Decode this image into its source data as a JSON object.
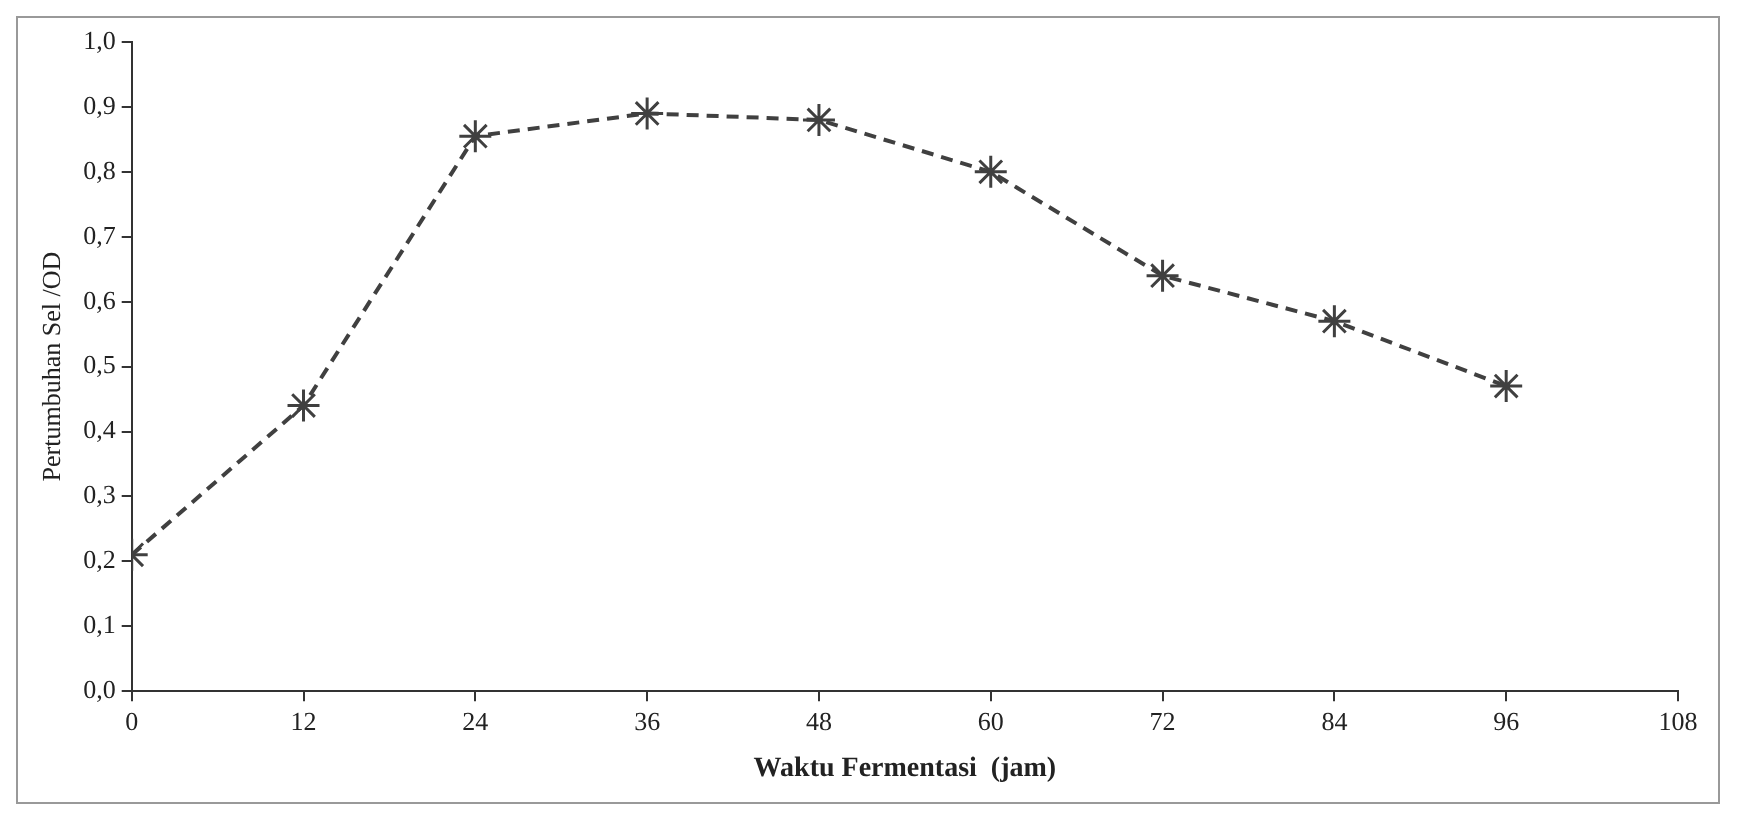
{
  "chart_data": {
    "type": "line",
    "xlabel": "Waktu Fermentasi  (jam)",
    "ylabel": "Pertumbuhan Sel /OD",
    "x": [
      0,
      12,
      24,
      36,
      48,
      60,
      72,
      84,
      96
    ],
    "series": [
      {
        "color": "#404040",
        "values": [
          0.21,
          0.44,
          0.855,
          0.89,
          0.88,
          0.8,
          0.64,
          0.57,
          0.47
        ]
      }
    ],
    "xlim": [
      0,
      108
    ],
    "xticks": [
      0,
      12,
      24,
      36,
      48,
      60,
      72,
      84,
      96,
      108
    ],
    "ylim": [
      0,
      1
    ],
    "yticks": [
      {
        "value": 0,
        "label": "0,0"
      },
      {
        "value": 0.1,
        "label": "0,1"
      },
      {
        "value": 0.2,
        "label": "0,2"
      },
      {
        "value": 0.3,
        "label": "0,3"
      },
      {
        "value": 0.4,
        "label": "0,4"
      },
      {
        "value": 0.5,
        "label": "0,5"
      },
      {
        "value": 0.6,
        "label": "0,6"
      },
      {
        "value": 0.7,
        "label": "0,7"
      },
      {
        "value": 0.8,
        "label": "0,8"
      },
      {
        "value": 0.9,
        "label": "0,9"
      },
      {
        "value": 1,
        "label": "1,0"
      }
    ],
    "grid": false,
    "legend": false,
    "marker": "cross",
    "line_style": "dashed"
  }
}
